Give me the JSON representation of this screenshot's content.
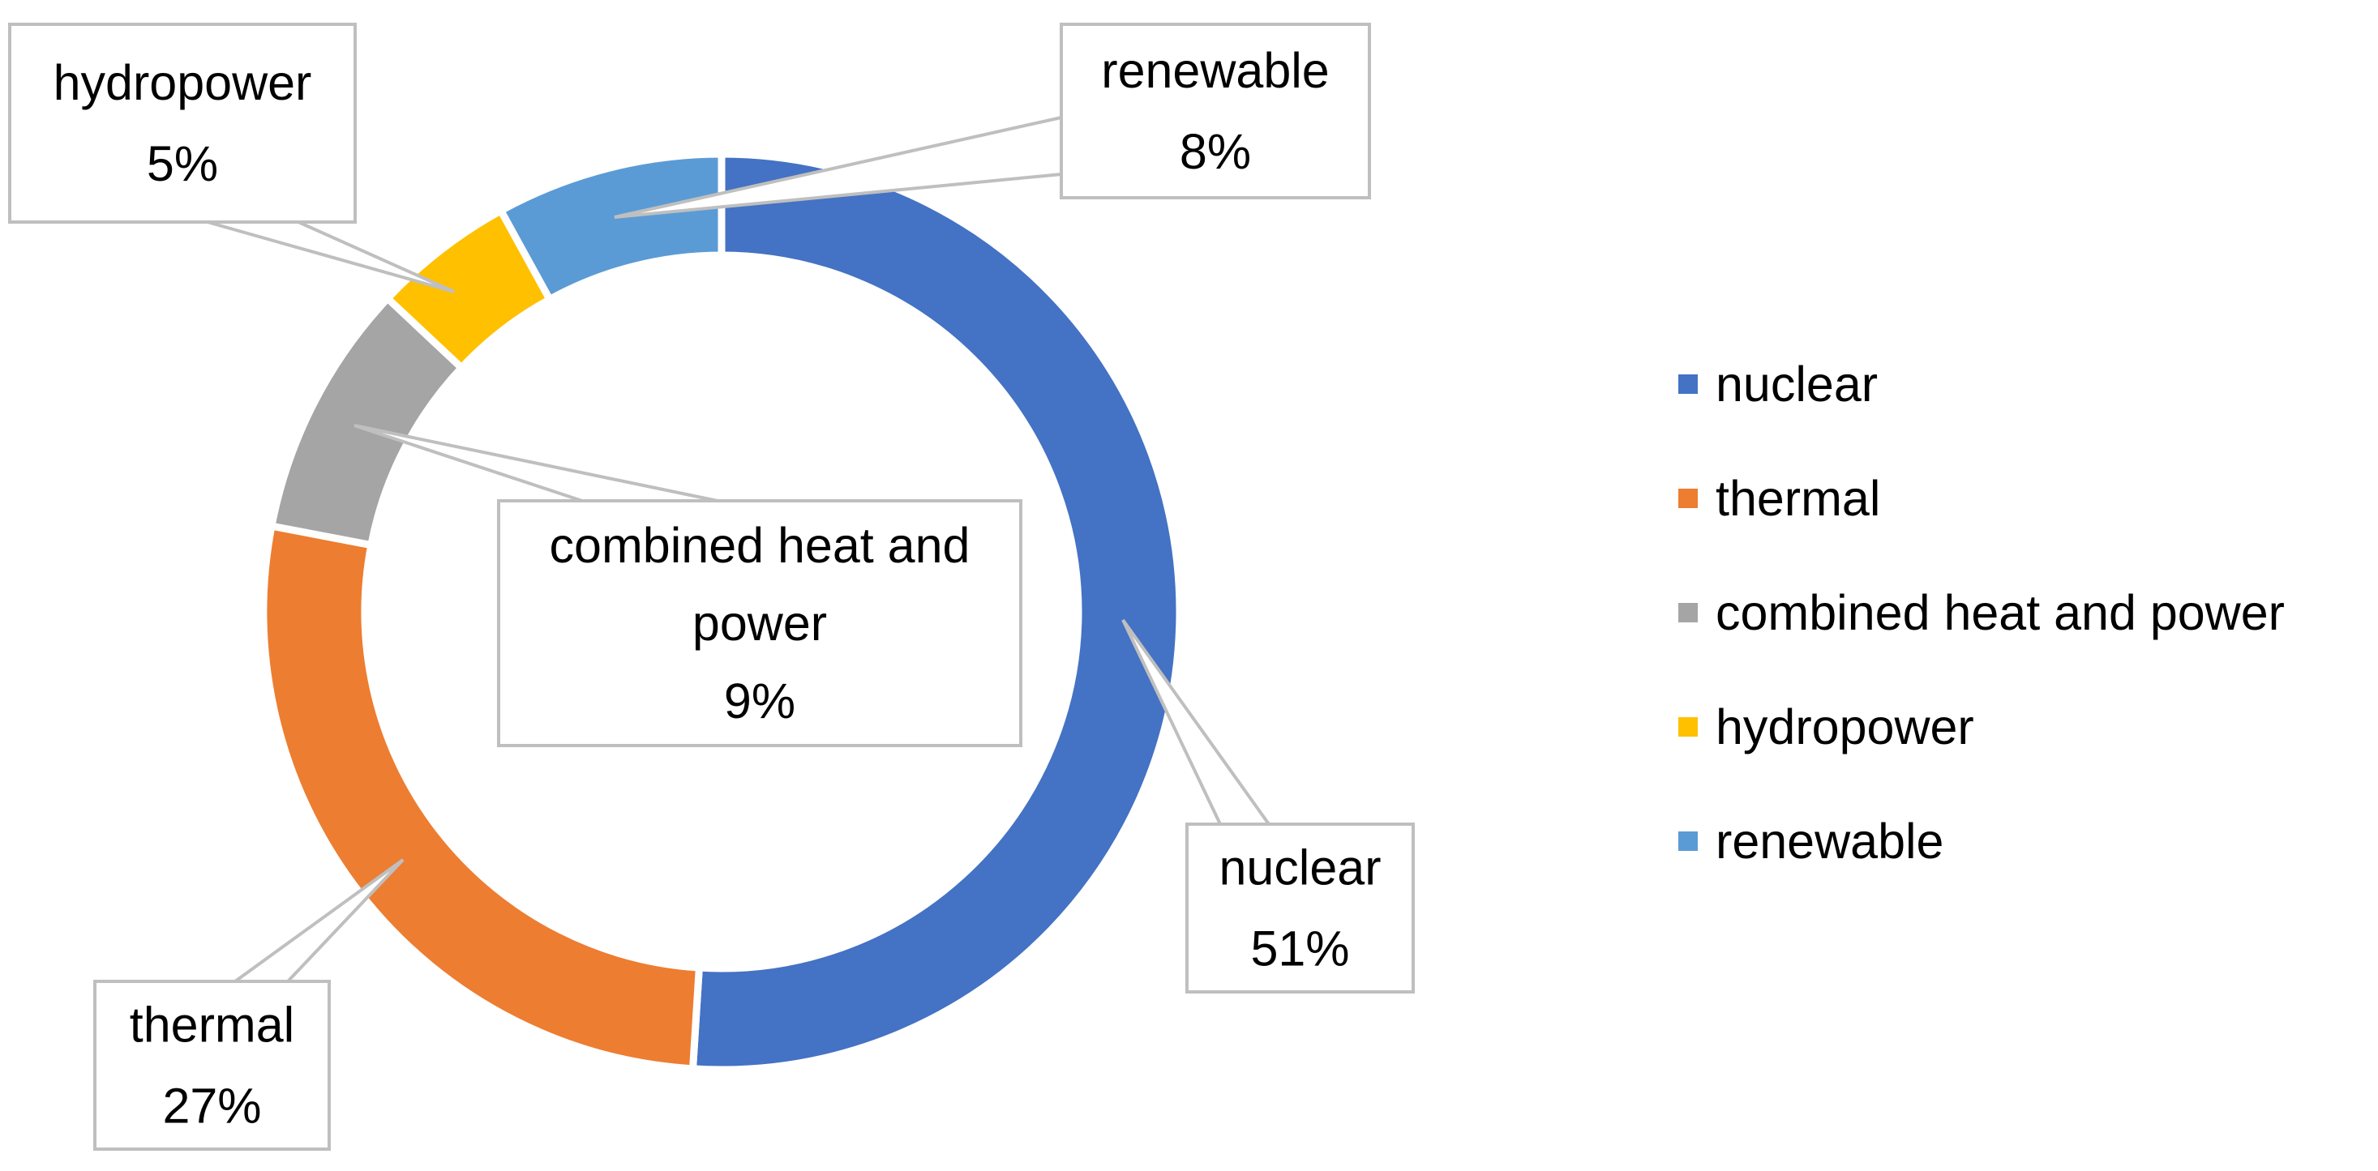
{
  "chart_data": {
    "type": "pie",
    "variant": "doughnut",
    "title": "",
    "legend_position": "right",
    "series": [
      {
        "name": "nuclear",
        "value": 51,
        "label": "51%",
        "color": "#4472C4"
      },
      {
        "name": "thermal",
        "value": 27,
        "label": "27%",
        "color": "#ED7D31"
      },
      {
        "name": "combined heat and power",
        "value": 9,
        "label": "9%",
        "color": "#A5A5A5"
      },
      {
        "name": "hydropower",
        "value": 5,
        "label": "5%",
        "color": "#FFC000"
      },
      {
        "name": "renewable",
        "value": 8,
        "label": "8%",
        "color": "#5B9BD5"
      }
    ],
    "callouts": [
      {
        "series": "nuclear",
        "lines": [
          "nuclear",
          "51%"
        ]
      },
      {
        "series": "thermal",
        "lines": [
          "thermal",
          "27%"
        ]
      },
      {
        "series": "combined heat and power",
        "lines": [
          "combined heat and",
          "power",
          "9%"
        ]
      },
      {
        "series": "hydropower",
        "lines": [
          "hydropower",
          "5%"
        ]
      },
      {
        "series": "renewable",
        "lines": [
          "renewable",
          "8%"
        ]
      }
    ],
    "legend": [
      "nuclear",
      "thermal",
      "combined heat and power",
      "hydropower",
      "renewable"
    ]
  },
  "colors": {
    "callout_border": "#BFBFBF",
    "slice_separator": "#FFFFFF",
    "text": "#000000"
  }
}
